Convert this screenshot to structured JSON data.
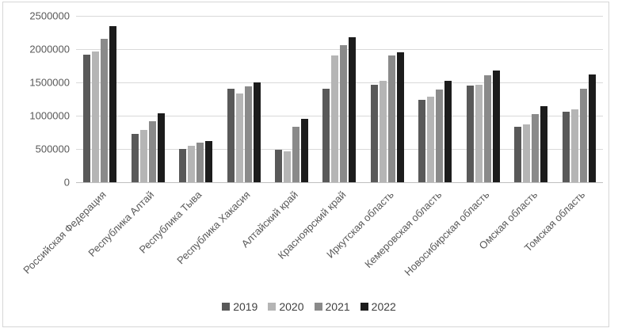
{
  "chart_data": {
    "type": "bar",
    "title": "",
    "xlabel": "",
    "ylabel": "",
    "categories": [
      "Российская Федерация",
      "Республика Алтай",
      "Республика Тыва",
      "Республика Хакасия",
      "Алтайский край",
      "Красноярский край",
      "Иркутская область",
      "Кемеровская область",
      "Новосибирская область",
      "Омская область",
      "Томская область"
    ],
    "series": [
      {
        "name": "2019",
        "color": "#595959",
        "values": [
          1920000,
          730000,
          500000,
          1400000,
          490000,
          1410000,
          1470000,
          1240000,
          1450000,
          830000,
          1060000
        ]
      },
      {
        "name": "2020",
        "color": "#b5b5b5",
        "values": [
          1960000,
          790000,
          550000,
          1330000,
          470000,
          1910000,
          1520000,
          1290000,
          1470000,
          870000,
          1090000
        ]
      },
      {
        "name": "2021",
        "color": "#8a8a8a",
        "values": [
          2150000,
          920000,
          590000,
          1440000,
          830000,
          2060000,
          1900000,
          1390000,
          1610000,
          1020000,
          1410000
        ]
      },
      {
        "name": "2022",
        "color": "#1c1c1c",
        "values": [
          2340000,
          1030000,
          620000,
          1500000,
          950000,
          2180000,
          1950000,
          1520000,
          1680000,
          1140000,
          1620000
        ]
      }
    ],
    "ylim": [
      0,
      2500000
    ],
    "y_ticks": [
      "2500000",
      "2000000",
      "1500000",
      "1000000",
      "500000",
      "0"
    ],
    "grid": "horizontal",
    "legend_position": "bottom-center",
    "colors": {
      "gridline": "#d9d9d9",
      "axis_line": "#bfbfbf",
      "tick_label": "#595959",
      "legend_text": "#404040",
      "frame_border": "#d6d6d6"
    }
  }
}
